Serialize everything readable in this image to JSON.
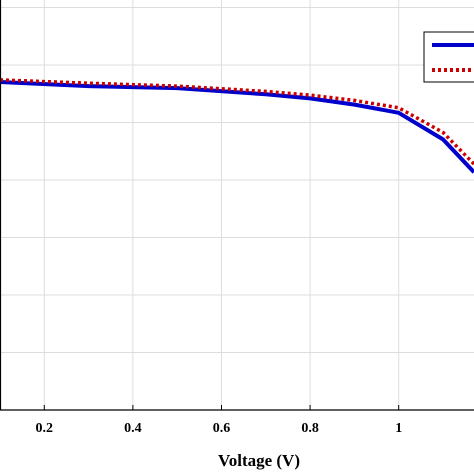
{
  "chart_data": {
    "type": "line",
    "xlabel": "Voltage (V)",
    "ylabel": "",
    "title": "",
    "xlim": [
      0.1,
      1.17
    ],
    "ylim": [
      0,
      1.0
    ],
    "xticks": [
      0.2,
      0.4,
      0.6,
      0.8,
      1.0
    ],
    "xtick_labels": [
      "0.2",
      "0.4",
      "0.6",
      "0.8",
      "1"
    ],
    "grid": true,
    "legend_placement": "top-right",
    "series": [
      {
        "color": "#0000cc",
        "style": "solid",
        "x": [
          0.1,
          0.3,
          0.5,
          0.7,
          0.8,
          0.9,
          1.0,
          1.1,
          1.17
        ],
        "y": [
          0.8,
          0.79,
          0.785,
          0.77,
          0.76,
          0.745,
          0.725,
          0.66,
          0.58
        ]
      },
      {
        "color": "#cc0000",
        "style": "dotted",
        "x": [
          0.1,
          0.3,
          0.5,
          0.7,
          0.8,
          0.9,
          1.0,
          1.1,
          1.17
        ],
        "y": [
          0.805,
          0.797,
          0.79,
          0.777,
          0.768,
          0.755,
          0.737,
          0.677,
          0.6
        ]
      }
    ]
  }
}
